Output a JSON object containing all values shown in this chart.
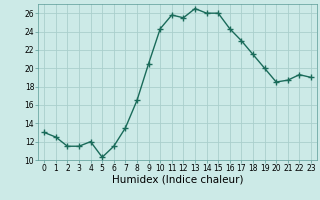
{
  "x": [
    0,
    1,
    2,
    3,
    4,
    5,
    6,
    7,
    8,
    9,
    10,
    11,
    12,
    13,
    14,
    15,
    16,
    17,
    18,
    19,
    20,
    21,
    22,
    23
  ],
  "y": [
    13,
    12.5,
    11.5,
    11.5,
    12,
    10.3,
    11.5,
    13.5,
    16.5,
    20.5,
    24.3,
    25.8,
    25.5,
    26.5,
    26,
    26,
    24.3,
    23,
    21.5,
    20,
    18.5,
    18.7,
    19.3,
    19
  ],
  "line_color": "#1a6b5a",
  "marker": "+",
  "marker_size": 4,
  "background_color": "#cceae7",
  "grid_color": "#aacfcc",
  "xlabel": "Humidex (Indice chaleur)",
  "ylim": [
    10,
    27
  ],
  "yticks": [
    10,
    12,
    14,
    16,
    18,
    20,
    22,
    24,
    26
  ],
  "xticks": [
    0,
    1,
    2,
    3,
    4,
    5,
    6,
    7,
    8,
    9,
    10,
    11,
    12,
    13,
    14,
    15,
    16,
    17,
    18,
    19,
    20,
    21,
    22,
    23
  ],
  "tick_fontsize": 5.5,
  "xlabel_fontsize": 7.5,
  "linewidth": 1.0
}
